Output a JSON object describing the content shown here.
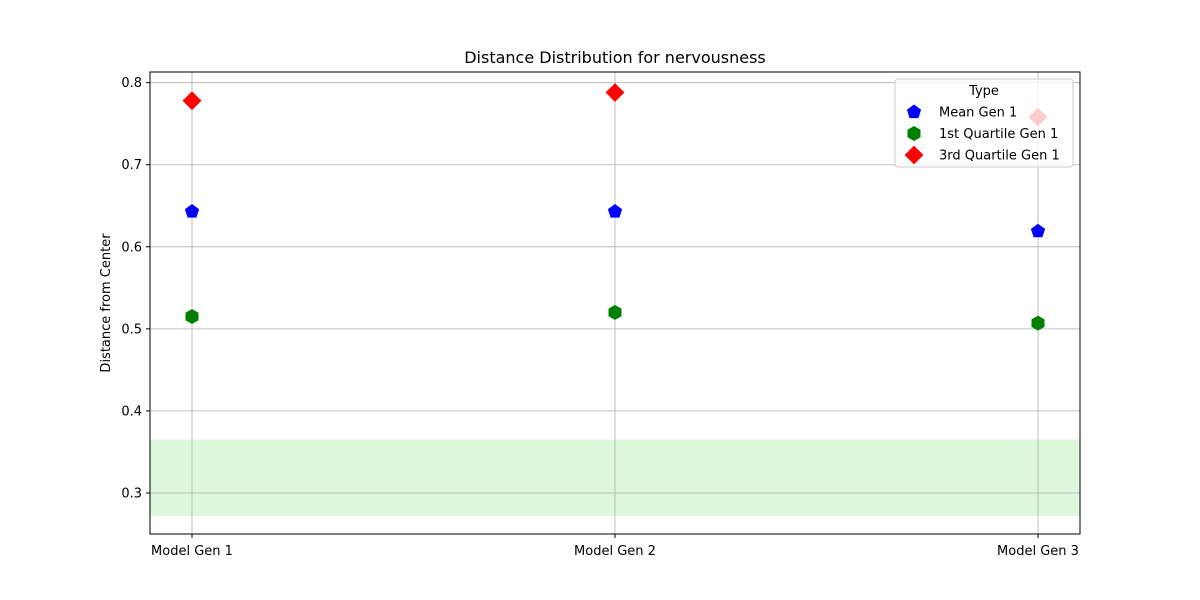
{
  "chart_data": {
    "type": "scatter",
    "title": "Distance Distribution for nervousness",
    "xlabel": "",
    "ylabel": "Distance from Center",
    "categories": [
      "Model Gen 1",
      "Model Gen 2",
      "Model Gen 3"
    ],
    "ylim": [
      0.25,
      0.813
    ],
    "yticks": [
      0.3,
      0.4,
      0.5,
      0.6,
      0.7,
      0.8
    ],
    "ytick_labels": [
      "0.3",
      "0.4",
      "0.5",
      "0.6",
      "0.7",
      "0.8"
    ],
    "grid": true,
    "band": {
      "from": 0.272,
      "to": 0.365,
      "color": "#dcf7dc"
    },
    "legend": {
      "title": "Type",
      "placement": "top-right"
    },
    "series": [
      {
        "name": "Mean Gen 1",
        "marker": "pentagon",
        "color": "#0000ff",
        "values": [
          0.643,
          0.643,
          0.619
        ]
      },
      {
        "name": "1st Quartile Gen 1",
        "marker": "hexagon",
        "color": "#008000",
        "values": [
          0.515,
          0.52,
          0.507
        ]
      },
      {
        "name": "3rd Quartile Gen 1",
        "marker": "diamond",
        "color": "#ff0000",
        "values": [
          0.778,
          0.788,
          0.758
        ]
      }
    ]
  }
}
